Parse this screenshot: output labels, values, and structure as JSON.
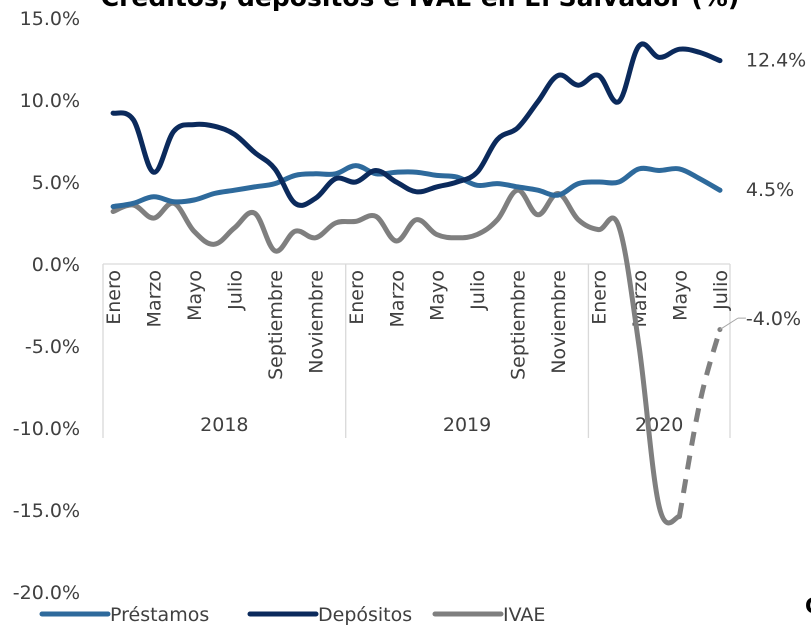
{
  "chart_data": {
    "type": "line",
    "title": "Créditos, depósitos e IVAE en El Salvador (%)",
    "ylim": [
      -20,
      15
    ],
    "yticks": [
      "15.0%",
      "10.0%",
      "5.0%",
      "0.0%",
      "-5.0%",
      "-10.0%",
      "-15.0%",
      "-20.0%"
    ],
    "ytick_values": [
      15,
      10,
      5,
      0,
      -5,
      -10,
      -15,
      -20
    ],
    "month_labels": [
      "Enero",
      "Marzo",
      "Mayo",
      "Julio",
      "Septiembre",
      "Noviembre",
      "Enero",
      "Marzo",
      "Mayo",
      "Julio",
      "Septiembre",
      "Noviembre",
      "Enero",
      "Marzo",
      "Mayo",
      "Julio"
    ],
    "month_label_index": [
      0,
      2,
      4,
      6,
      8,
      10,
      12,
      14,
      16,
      18,
      20,
      22,
      24,
      26,
      28,
      30
    ],
    "years": [
      {
        "label": "2018",
        "start": 0,
        "end": 11
      },
      {
        "label": "2019",
        "start": 12,
        "end": 23
      },
      {
        "label": "2020",
        "start": 24,
        "end": 30
      }
    ],
    "grid": false,
    "legend": "bottom",
    "series": [
      {
        "name": "Préstamos",
        "color": "#2e6a9c",
        "end_label": "4.5%",
        "values": [
          3.5,
          3.7,
          4.1,
          3.8,
          3.9,
          4.3,
          4.5,
          4.7,
          4.9,
          5.4,
          5.5,
          5.5,
          6.0,
          5.5,
          5.6,
          5.6,
          5.4,
          5.3,
          4.8,
          4.9,
          4.7,
          4.5,
          4.2,
          4.9,
          5.0,
          5.0,
          5.8,
          5.7,
          5.8,
          5.2,
          4.5
        ]
      },
      {
        "name": "Depósitos",
        "color": "#0b2a5c",
        "end_label": "12.4%",
        "values": [
          9.2,
          8.8,
          5.6,
          8.1,
          8.5,
          8.4,
          7.9,
          6.8,
          5.8,
          3.7,
          4.0,
          5.2,
          5.0,
          5.7,
          5.0,
          4.4,
          4.7,
          5.0,
          5.6,
          7.6,
          8.3,
          9.9,
          11.5,
          10.9,
          11.5,
          9.9,
          13.3,
          12.6,
          13.1,
          12.9,
          12.4
        ]
      },
      {
        "name": "IVAE",
        "color": "#7f7f7f",
        "end_label": "-4.0%",
        "values": [
          3.2,
          3.6,
          2.8,
          3.7,
          2.0,
          1.2,
          2.2,
          3.1,
          0.8,
          2.0,
          1.6,
          2.5,
          2.6,
          2.9,
          1.4,
          2.7,
          1.8,
          1.6,
          1.8,
          2.7,
          4.5,
          3.0,
          4.3,
          2.7,
          2.1,
          2.3,
          -5.0,
          -14.8,
          -15.4,
          -8.5,
          -4.0
        ],
        "dashed_from_index": 29
      }
    ]
  },
  "page_ref": "C"
}
